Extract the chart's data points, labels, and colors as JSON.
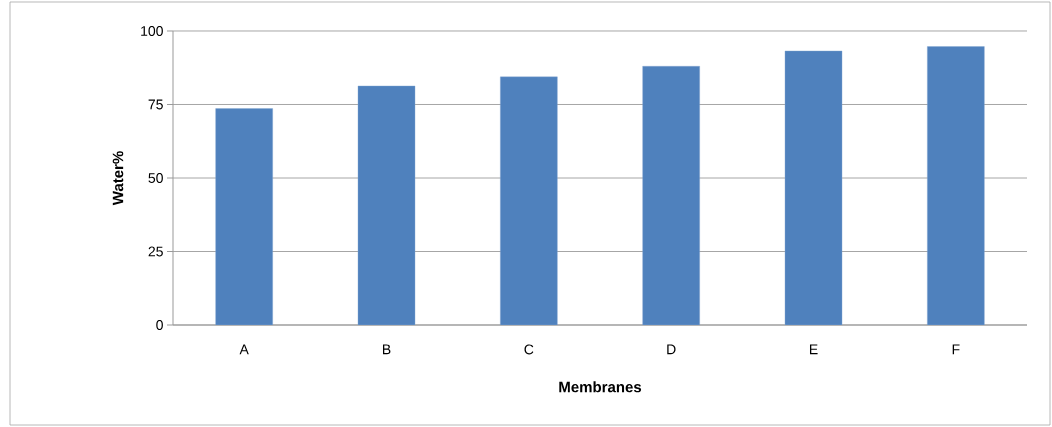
{
  "chart_data": {
    "type": "bar",
    "xlabel": "Membranes",
    "ylabel": "Water%",
    "categories": [
      "A",
      "B",
      "C",
      "D",
      "E",
      "F"
    ],
    "values": [
      73.6,
      81.3,
      84.4,
      88.0,
      93.2,
      94.7
    ],
    "color": "#4f81bd",
    "ylim": [
      0,
      100
    ],
    "yticks": [
      0,
      25,
      50,
      75,
      100
    ],
    "grid": "y"
  }
}
